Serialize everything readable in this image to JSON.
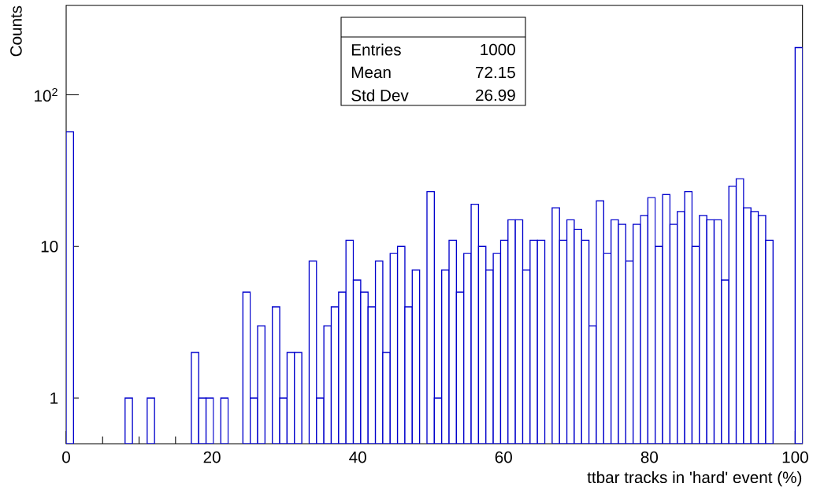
{
  "chart_data": {
    "type": "histogram",
    "xlabel": "ttbar tracks in 'hard' event (%)",
    "ylabel": "Counts",
    "annotations": [
      "Entries",
      "1000",
      "Mean",
      "72.15",
      "Std Dev",
      "26.99"
    ],
    "color": "#0000cc",
    "bins": [
      0,
      1.01,
      2.02,
      3.03,
      4.04,
      5.05,
      6.06,
      7.07,
      8.08,
      9.09,
      10.1,
      11.11,
      12.12,
      13.13,
      14.14,
      15.15,
      16.16,
      17.17,
      18.18,
      19.19,
      20.2,
      21.21,
      22.22,
      23.23,
      24.24,
      25.25,
      26.26,
      27.27,
      28.28,
      29.29,
      30.3,
      31.31,
      32.32,
      33.33,
      34.34,
      35.35,
      36.36,
      37.37,
      38.38,
      39.39,
      40.4,
      41.41,
      42.42,
      43.43,
      44.44,
      45.45,
      46.46,
      47.47,
      48.48,
      49.49,
      50.5,
      51.51,
      52.52,
      53.53,
      54.54,
      55.55,
      56.56,
      57.57,
      58.58,
      59.59,
      60.6,
      61.61,
      62.62,
      63.63,
      64.64,
      65.65,
      66.66,
      67.67,
      68.68,
      69.69,
      70.7,
      71.71,
      72.72,
      73.73,
      74.74,
      75.75,
      76.76,
      77.77,
      78.78,
      79.79,
      80.8,
      81.81,
      82.82,
      83.83,
      84.84,
      85.85,
      86.86,
      87.87,
      88.88,
      89.89,
      90.9,
      91.91,
      92.92,
      93.93,
      94.94,
      95.95,
      96.96,
      97.97,
      98.98,
      99.99,
      101
    ],
    "values": [
      57,
      null,
      null,
      null,
      null,
      null,
      null,
      null,
      1,
      null,
      null,
      1,
      null,
      null,
      null,
      null,
      null,
      2,
      1,
      1,
      null,
      1,
      null,
      null,
      5,
      1,
      3,
      null,
      4,
      1,
      2,
      2,
      null,
      8,
      1,
      3,
      4,
      5,
      11,
      6,
      5,
      4,
      8,
      2,
      9,
      10,
      4,
      7,
      null,
      23,
      1,
      7,
      11,
      5,
      9,
      19,
      10,
      7,
      9,
      11,
      15,
      15,
      7,
      11,
      11,
      null,
      18,
      11,
      15,
      13,
      11,
      3,
      20,
      9,
      15,
      14,
      8,
      14,
      16,
      21,
      10,
      22,
      14,
      17,
      23,
      10,
      16,
      15,
      15,
      6,
      25,
      28,
      18,
      17,
      16,
      11,
      null,
      null,
      null,
      205
    ],
    "xlim": [
      0,
      101
    ],
    "ylim": [
      0.5,
      390
    ],
    "xticks": [
      0,
      20,
      40,
      60,
      80,
      100
    ],
    "yticks": [
      1,
      10,
      {
        "value": 100,
        "label": "10$^{2}$"
      }
    ],
    "log": "y"
  }
}
